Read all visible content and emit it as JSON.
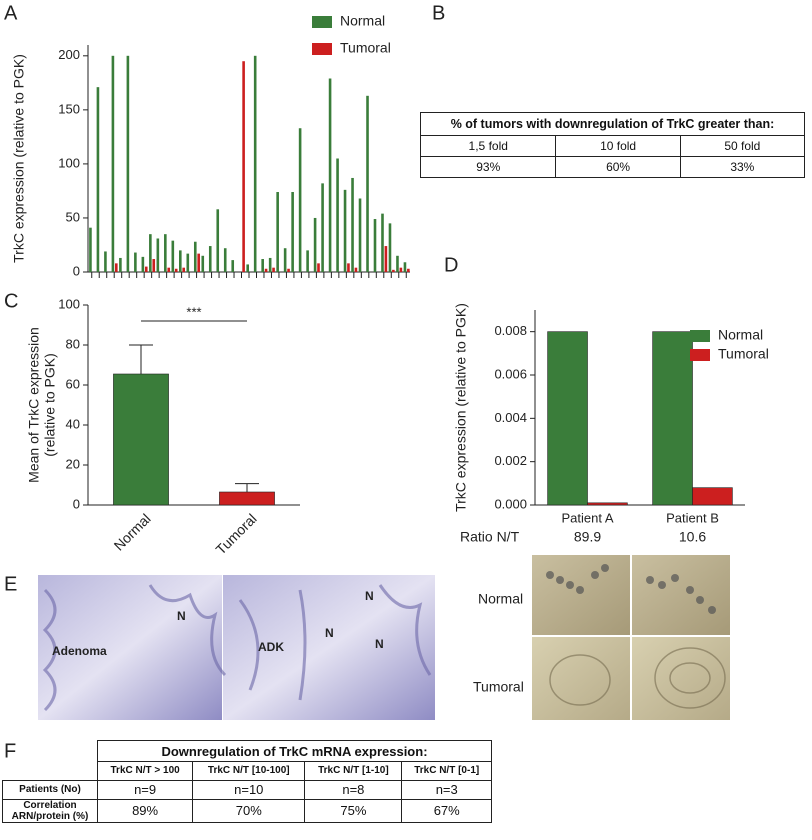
{
  "panel_letters": [
    "A",
    "B",
    "C",
    "D",
    "E",
    "F"
  ],
  "chart_data": [
    {
      "type": "bar",
      "y_label": [
        "TrkC expression (relative to PGK)"
      ],
      "categories": [
        null,
        null,
        null,
        null,
        null,
        null,
        null,
        null,
        null,
        null,
        null,
        null,
        null,
        null,
        null,
        null,
        null,
        null,
        null,
        null,
        null,
        null,
        null,
        null,
        null,
        null,
        null,
        null,
        null,
        null,
        null,
        null,
        null,
        null,
        null,
        null,
        null,
        null,
        null,
        null,
        null,
        null,
        null
      ],
      "series": [
        {
          "name": "Normal",
          "color": "#3a7d3a",
          "values": [
            41,
            171,
            19,
            200,
            13,
            200,
            18,
            14,
            35,
            31,
            35,
            29,
            20,
            17,
            28,
            15,
            24,
            58,
            22,
            11,
            0,
            7,
            200,
            12,
            13,
            74,
            22,
            74,
            133,
            20,
            50,
            82,
            179,
            105,
            76,
            87,
            68,
            163,
            49,
            54,
            45,
            15,
            9
          ]
        },
        {
          "name": "Tumoral",
          "color": "#cc1f1f",
          "values": [
            0,
            0,
            0,
            8,
            0,
            0,
            0,
            5,
            12,
            0,
            4,
            3,
            4,
            0,
            17,
            0,
            0,
            0,
            0,
            0,
            195,
            0,
            0,
            3,
            4,
            0,
            3,
            0,
            0,
            0,
            8,
            0,
            0,
            0,
            8,
            4,
            0,
            0,
            0,
            24,
            2,
            4,
            3
          ]
        }
      ],
      "ylim": [
        0,
        210
      ],
      "yticks": [
        0,
        50,
        100,
        150,
        200
      ],
      "legend": "top-right"
    },
    {
      "type": "bar",
      "y_label": [
        "Mean of  TrkC expression",
        "(relative to PGK)"
      ],
      "categories": [
        "Normal",
        "Tumoral"
      ],
      "values": [
        65.5,
        6.5
      ],
      "errors": [
        14.5,
        4.2
      ],
      "colors": [
        "#3a7d3a",
        "#cc1f1f"
      ],
      "annotation": "***",
      "ylim": [
        0,
        100
      ],
      "yticks": [
        0,
        20,
        40,
        60,
        80,
        100
      ]
    },
    {
      "type": "bar",
      "y_label": [
        "TrkC expression (relative to PGK)"
      ],
      "categories": [
        "Patient A",
        "Patient B"
      ],
      "series": [
        {
          "name": "Normal",
          "color": "#3a7d3a",
          "values": [
            0.008,
            0.008
          ]
        },
        {
          "name": "Tumoral",
          "color": "#cc1f1f",
          "values": [
            0.0001,
            0.0008
          ]
        }
      ],
      "ratio_label": "Ratio N/T",
      "ratios": [
        89.9,
        10.6
      ],
      "ylim": [
        0,
        0.009
      ],
      "yticks": [
        {
          "value": 0,
          "label": "0.000"
        },
        {
          "value": 0.002,
          "label": "0.002"
        },
        {
          "value": 0.004,
          "label": "0.004"
        },
        {
          "value": 0.006,
          "label": "0.006"
        },
        {
          "value": 0.008,
          "label": "0.008"
        }
      ],
      "legend": "top-right"
    }
  ],
  "table_b": {
    "title": "% of tumors with downregulation of TrkC greater than:",
    "rows": [
      [
        "1,5 fold",
        "10 fold",
        "50 fold"
      ],
      [
        "93%",
        "60%",
        "33%"
      ]
    ]
  },
  "panel_e": {
    "left_labels": [
      "Adenoma",
      "N",
      "ADK",
      "N",
      "N",
      "N"
    ],
    "right_rows": [
      "Normal",
      "Tumoral"
    ]
  },
  "table_f": {
    "title": "Downregulation of TrkC mRNA expression:",
    "columns": [
      "TrkC N/T > 100",
      "TrkC N/T [10-100]",
      "TrkC N/T [1-10]",
      "TrkC N/T [0-1]"
    ],
    "rows": [
      {
        "label": "Patients (No)",
        "cells": [
          "n=9",
          "n=10",
          "n=8",
          "n=3"
        ]
      },
      {
        "label": "Correlation ARN/protein (%)",
        "cells": [
          "89%",
          "70%",
          "75%",
          "67%"
        ]
      }
    ]
  }
}
